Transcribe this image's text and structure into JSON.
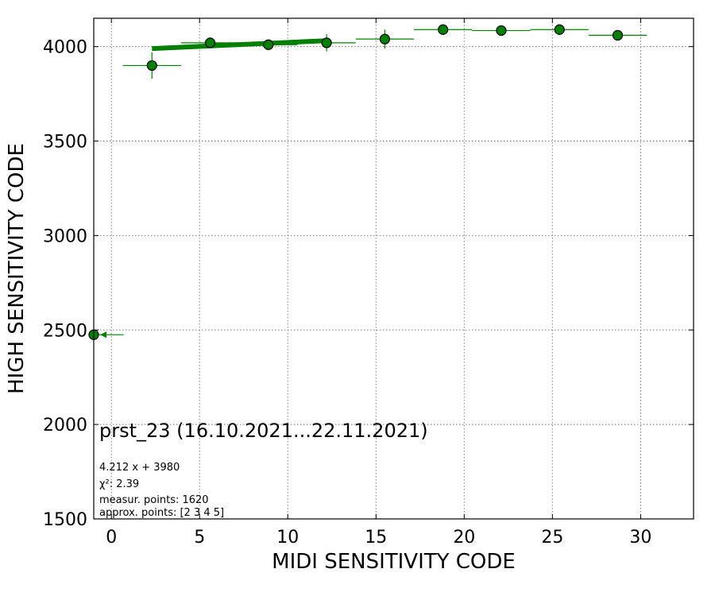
{
  "chart_data": {
    "type": "scatter",
    "title": "",
    "xlabel": "MIDI SENSITIVITY CODE",
    "ylabel": "HIGH SENSITIVITY CODE",
    "xlim": [
      -1,
      33
    ],
    "ylim": [
      1500,
      4150
    ],
    "xticks": [
      0,
      5,
      10,
      15,
      20,
      25,
      30
    ],
    "yticks": [
      1500,
      2000,
      2500,
      3000,
      3500,
      4000
    ],
    "grid": true,
    "series": [
      {
        "color": "#008000",
        "points": [
          {
            "x": -1.0,
            "y": 2475,
            "xerr_lo": 0.2,
            "xerr_hi": 1.7,
            "yerr": 0,
            "clipped_left": true
          },
          {
            "x": 2.3,
            "y": 3900,
            "xerr": 1.65,
            "yerr": 70
          },
          {
            "x": 5.6,
            "y": 4020,
            "xerr": 1.65,
            "yerr": 15
          },
          {
            "x": 8.9,
            "y": 4010,
            "xerr": 1.65,
            "yerr": 15
          },
          {
            "x": 12.2,
            "y": 4020,
            "xerr": 1.65,
            "yerr": 45
          },
          {
            "x": 15.5,
            "y": 4040,
            "xerr": 1.65,
            "yerr": 50
          },
          {
            "x": 18.8,
            "y": 4090,
            "xerr": 1.65,
            "yerr": 10
          },
          {
            "x": 22.1,
            "y": 4085,
            "xerr": 1.65,
            "yerr": 10
          },
          {
            "x": 25.4,
            "y": 4090,
            "xerr": 1.65,
            "yerr": 10
          },
          {
            "x": 28.7,
            "y": 4060,
            "xerr": 1.65,
            "yerr": 20
          }
        ]
      }
    ],
    "fit": {
      "x": [
        2.3,
        12.2
      ],
      "y": [
        3989.7,
        4031.4
      ],
      "color": "#008000"
    },
    "annotations": {
      "dataset": "prst_23 (16.10.2021...22.11.2021)",
      "fit_eq": "4.212 x + 3980",
      "chi2_label": "χ²: 2.39",
      "measur_points": "measur. points: 1620",
      "approx_points": "approx. points: [2 3 4 5]"
    }
  }
}
